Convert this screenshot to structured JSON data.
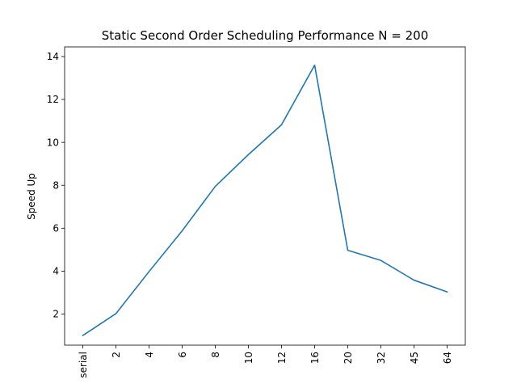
{
  "chart_data": {
    "type": "line",
    "title": "Static Second Order Scheduling Performance N = 200",
    "xlabel": "",
    "ylabel": "Speed Up",
    "categories": [
      "serial",
      "2",
      "4",
      "6",
      "8",
      "10",
      "12",
      "16",
      "20",
      "32",
      "45",
      "64"
    ],
    "series": [
      {
        "values": [
          1.0,
          2.02,
          3.98,
          5.88,
          7.95,
          9.43,
          10.82,
          13.6,
          4.97,
          4.5,
          3.58,
          3.03
        ],
        "color": "#1f77b4"
      }
    ],
    "ylim": [
      0.55,
      14.45
    ],
    "yticks": [
      2,
      4,
      6,
      8,
      10,
      12,
      14
    ],
    "grid": false,
    "legend": "none"
  }
}
